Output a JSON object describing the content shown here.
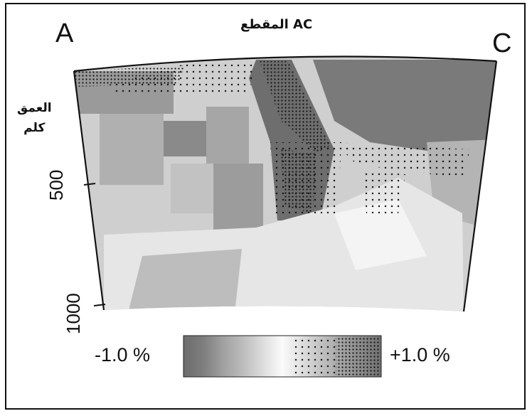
{
  "title": "المقطع AC",
  "endpoint_left": "A",
  "endpoint_right": "C",
  "depth_axis": {
    "label_line1": "العمق",
    "label_line2": "كلم",
    "ticks": [
      "500",
      "1000"
    ]
  },
  "color_scale": {
    "min_label": "-1.0 %",
    "max_label": "+1.0 %",
    "colors": [
      "#6c6c6c",
      "#808080",
      "#949494",
      "#a8a8a8",
      "#bcbcbc",
      "#d0d0d0",
      "#e4e4e4",
      "#f6f6f6",
      "#e8e8e8",
      "#d4d4d4",
      "#c0c0c0",
      "#a8a8a8",
      "#8e8e8e",
      "#707070"
    ]
  }
}
